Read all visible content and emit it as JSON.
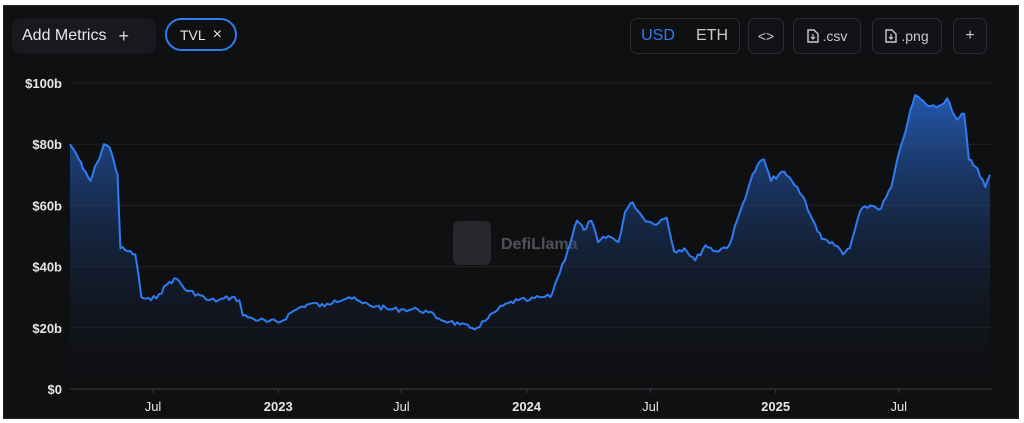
{
  "toolbar": {
    "add_metrics_label": "Add Metrics",
    "add_metrics_plus": "+",
    "metric_pill_label": "TVL",
    "metric_pill_close": "×",
    "currency_usd": "USD",
    "currency_eth": "ETH",
    "embed_label": "<>",
    "csv_label": ".csv",
    "png_label": ".png",
    "more_label": "+"
  },
  "watermark": {
    "text": "DefiLlama"
  },
  "colors": {
    "line": "#2f7bf1",
    "accent": "#2f7bf1",
    "background": "#0f1012",
    "grid": "#1e2024"
  },
  "chart_data": {
    "type": "area",
    "title": "",
    "xlabel": "",
    "ylabel": "",
    "x_domain": [
      "2022-03-01",
      "2025-11-15"
    ],
    "ylim": [
      0,
      100
    ],
    "y_unit": "billion USD",
    "y_ticks": [
      {
        "value": 0,
        "label": "$0"
      },
      {
        "value": 20,
        "label": "$20b"
      },
      {
        "value": 40,
        "label": "$40b"
      },
      {
        "value": 60,
        "label": "$60b"
      },
      {
        "value": 80,
        "label": "$80b"
      },
      {
        "value": 100,
        "label": "$100b"
      }
    ],
    "x_ticks": [
      {
        "date": "2022-07-01",
        "label": "Jul"
      },
      {
        "date": "2023-01-01",
        "label": "2023"
      },
      {
        "date": "2023-07-01",
        "label": "Jul"
      },
      {
        "date": "2024-01-01",
        "label": "2024"
      },
      {
        "date": "2024-07-01",
        "label": "Jul"
      },
      {
        "date": "2025-01-01",
        "label": "2025"
      },
      {
        "date": "2025-07-01",
        "label": "Jul"
      }
    ],
    "grid": true,
    "series": [
      {
        "name": "TVL",
        "points": [
          [
            "2022-03-01",
            80
          ],
          [
            "2022-03-10",
            77
          ],
          [
            "2022-03-20",
            72
          ],
          [
            "2022-03-31",
            68
          ],
          [
            "2022-04-10",
            74
          ],
          [
            "2022-04-20",
            80
          ],
          [
            "2022-04-28",
            79
          ],
          [
            "2022-05-05",
            74
          ],
          [
            "2022-05-10",
            70
          ],
          [
            "2022-05-14",
            46
          ],
          [
            "2022-05-25",
            45
          ],
          [
            "2022-06-05",
            44
          ],
          [
            "2022-06-14",
            30
          ],
          [
            "2022-06-28",
            29
          ],
          [
            "2022-07-10",
            31
          ],
          [
            "2022-07-25",
            35
          ],
          [
            "2022-08-05",
            36
          ],
          [
            "2022-08-20",
            32
          ],
          [
            "2022-09-05",
            31
          ],
          [
            "2022-09-20",
            29
          ],
          [
            "2022-10-05",
            29
          ],
          [
            "2022-10-25",
            30
          ],
          [
            "2022-11-05",
            29
          ],
          [
            "2022-11-10",
            24
          ],
          [
            "2022-11-25",
            23
          ],
          [
            "2022-12-15",
            22
          ],
          [
            "2023-01-05",
            22
          ],
          [
            "2023-01-20",
            25
          ],
          [
            "2023-02-05",
            27
          ],
          [
            "2023-02-20",
            28
          ],
          [
            "2023-03-10",
            27
          ],
          [
            "2023-03-25",
            29
          ],
          [
            "2023-04-15",
            30
          ],
          [
            "2023-05-05",
            28
          ],
          [
            "2023-05-25",
            27
          ],
          [
            "2023-06-15",
            26
          ],
          [
            "2023-07-05",
            26
          ],
          [
            "2023-07-25",
            26
          ],
          [
            "2023-08-10",
            25
          ],
          [
            "2023-08-25",
            23
          ],
          [
            "2023-09-10",
            22
          ],
          [
            "2023-09-25",
            21
          ],
          [
            "2023-10-10",
            20
          ],
          [
            "2023-10-20",
            20
          ],
          [
            "2023-11-05",
            23
          ],
          [
            "2023-11-20",
            26
          ],
          [
            "2023-12-05",
            28
          ],
          [
            "2023-12-20",
            29
          ],
          [
            "2024-01-05",
            29
          ],
          [
            "2024-01-20",
            30
          ],
          [
            "2024-02-05",
            30
          ],
          [
            "2024-02-15",
            36
          ],
          [
            "2024-03-01",
            45
          ],
          [
            "2024-03-15",
            55
          ],
          [
            "2024-03-25",
            52
          ],
          [
            "2024-04-05",
            55
          ],
          [
            "2024-04-15",
            48
          ],
          [
            "2024-04-30",
            50
          ],
          [
            "2024-05-15",
            48
          ],
          [
            "2024-05-25",
            58
          ],
          [
            "2024-06-05",
            61
          ],
          [
            "2024-06-20",
            56
          ],
          [
            "2024-07-05",
            54
          ],
          [
            "2024-07-25",
            56
          ],
          [
            "2024-08-05",
            45
          ],
          [
            "2024-08-20",
            46
          ],
          [
            "2024-09-05",
            42
          ],
          [
            "2024-09-20",
            47
          ],
          [
            "2024-10-05",
            45
          ],
          [
            "2024-10-25",
            47
          ],
          [
            "2024-11-10",
            58
          ],
          [
            "2024-11-25",
            68
          ],
          [
            "2024-12-05",
            73
          ],
          [
            "2024-12-15",
            75
          ],
          [
            "2024-12-25",
            68
          ],
          [
            "2025-01-10",
            71
          ],
          [
            "2025-01-25",
            68
          ],
          [
            "2025-02-10",
            63
          ],
          [
            "2025-02-25",
            55
          ],
          [
            "2025-03-10",
            49
          ],
          [
            "2025-03-25",
            48
          ],
          [
            "2025-04-10",
            44
          ],
          [
            "2025-04-20",
            46
          ],
          [
            "2025-05-05",
            58
          ],
          [
            "2025-05-20",
            60
          ],
          [
            "2025-06-05",
            59
          ],
          [
            "2025-06-20",
            66
          ],
          [
            "2025-07-05",
            80
          ],
          [
            "2025-07-15",
            88
          ],
          [
            "2025-07-25",
            96
          ],
          [
            "2025-08-10",
            93
          ],
          [
            "2025-08-25",
            92
          ],
          [
            "2025-09-10",
            95
          ],
          [
            "2025-09-25",
            88
          ],
          [
            "2025-10-05",
            90
          ],
          [
            "2025-10-12",
            75
          ],
          [
            "2025-10-25",
            72
          ],
          [
            "2025-11-05",
            66
          ],
          [
            "2025-11-12",
            70
          ]
        ]
      }
    ]
  }
}
